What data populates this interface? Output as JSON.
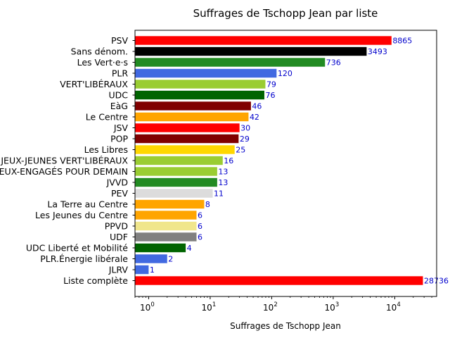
{
  "chart_data": {
    "type": "bar",
    "orientation": "horizontal",
    "title": "Suffrages de Tschopp Jean par liste",
    "xlabel": "Suffrages de Tschopp Jean",
    "ylabel": "",
    "xscale": "log",
    "xlim": [
      0.6,
      48000
    ],
    "xticks": [
      {
        "value": 1,
        "base": "10",
        "exp": "0"
      },
      {
        "value": 10,
        "base": "10",
        "exp": "1"
      },
      {
        "value": 100,
        "base": "10",
        "exp": "2"
      },
      {
        "value": 1000,
        "base": "10",
        "exp": "3"
      },
      {
        "value": 10000,
        "base": "10",
        "exp": "4"
      }
    ],
    "label_color": "#0000cc",
    "categories": [
      "PSV",
      "Sans dénom.",
      "Les Vert·e·s",
      "PLR",
      "VERT'LIBÉRAUX",
      "UDC",
      "EàG",
      "Le Centre",
      "JSV",
      "POP",
      "Les Libres",
      "JEUX-JEUNES VERT'LIBÉRAUX",
      "EUX-ENGAGÉS POUR DEMAIN",
      "JVVD",
      "PEV",
      "La Terre au Centre",
      "Les Jeunes du Centre",
      "PPVD",
      "UDF",
      "UDC Liberté et Mobilité",
      "PLR.Énergie libérale",
      "JLRV",
      "Liste complète"
    ],
    "values": [
      8865,
      3493,
      736,
      120,
      79,
      76,
      46,
      42,
      30,
      29,
      25,
      16,
      13,
      13,
      11,
      8,
      6,
      6,
      6,
      4,
      2,
      1,
      28736
    ],
    "value_labels": [
      "8865",
      "3493",
      "736",
      "120",
      "79",
      "76",
      "46",
      "42",
      "30",
      "29",
      "25",
      "16",
      "13",
      "13",
      "11",
      "8",
      "6",
      "6",
      "6",
      "4",
      "2",
      "1",
      "28736"
    ],
    "colors": [
      "#ff0000",
      "#000000",
      "#228b22",
      "#4169e1",
      "#9acd32",
      "#006400",
      "#800000",
      "#ffa500",
      "#ff0000",
      "#800000",
      "#ffd700",
      "#9acd32",
      "#9acd32",
      "#228b22",
      "#dcdcdc",
      "#ffa500",
      "#ffa500",
      "#f0e68c",
      "#808080",
      "#006400",
      "#4169e1",
      "#4169e1",
      "#ff0000"
    ]
  }
}
